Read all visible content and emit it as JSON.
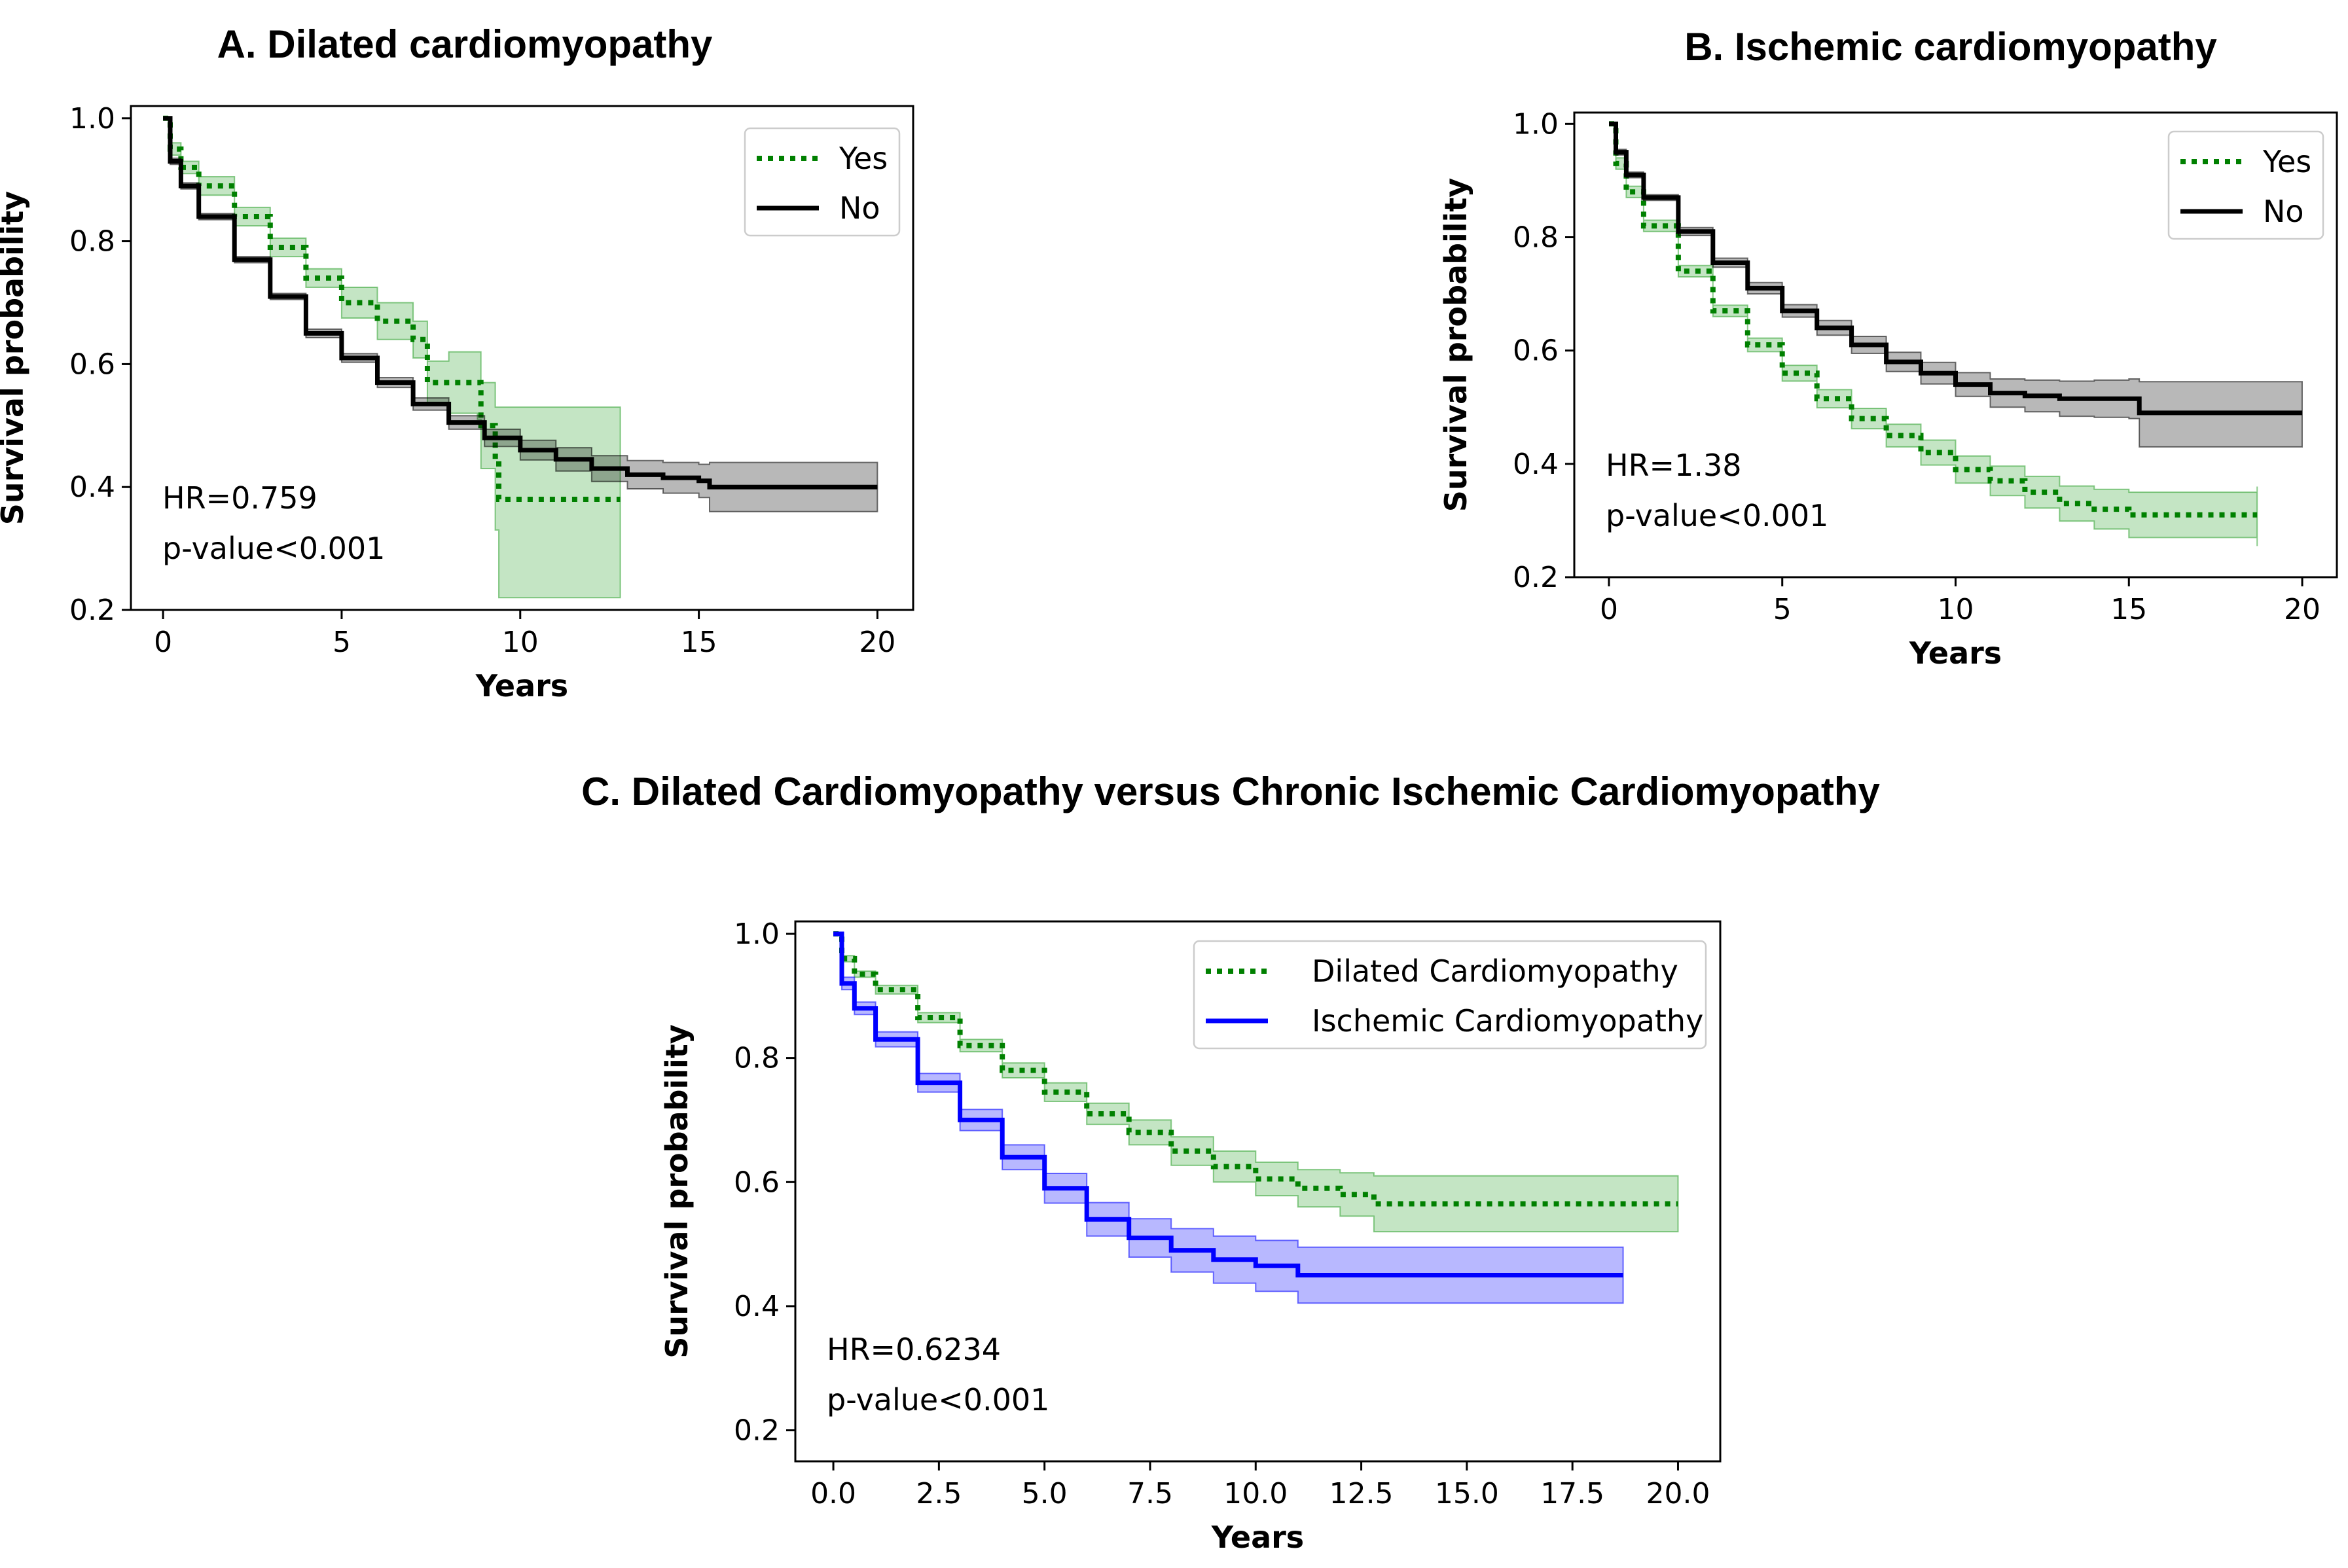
{
  "figure": {
    "title_c": "C. Dilated Cardiomyopathy versus Chronic Ischemic Cardiomyopathy"
  },
  "colors": {
    "green": "#008000",
    "green_band": "#2ca02c",
    "black": "#000000",
    "blue": "#0000ff"
  },
  "chart_data": [
    {
      "id": "A",
      "type": "line",
      "title": "A. Dilated cardiomyopathy",
      "xlabel": "Years",
      "ylabel": "Survival probability",
      "xlim": [
        -0.9,
        21
      ],
      "ylim": [
        0.2,
        1.02
      ],
      "xticks": [
        0,
        5,
        10,
        15,
        20
      ],
      "xtick_labels": [
        "0",
        "5",
        "10",
        "15",
        "20"
      ],
      "yticks": [
        0.2,
        0.4,
        0.6,
        0.8,
        1.0
      ],
      "ytick_labels": [
        "0.2",
        "0.4",
        "0.6",
        "0.8",
        "1.0"
      ],
      "legend": {
        "position": "top-right",
        "labels": [
          "Yes",
          "No"
        ]
      },
      "annotations": {
        "hr": "HR=0.759",
        "p": "p-value<0.001"
      },
      "series": [
        {
          "name": "Yes",
          "color": "#008000",
          "style": "dotted",
          "step": true,
          "x": [
            0,
            0.2,
            0.5,
            1,
            2,
            3,
            4,
            5,
            6,
            7,
            7.3,
            7.4,
            8,
            8.8,
            8.9,
            9.3,
            9.4,
            12.8
          ],
          "y": [
            1.0,
            0.95,
            0.92,
            0.89,
            0.84,
            0.79,
            0.74,
            0.7,
            0.67,
            0.64,
            0.64,
            0.57,
            0.57,
            0.57,
            0.5,
            0.45,
            0.38,
            0.38
          ],
          "lower": [
            1.0,
            0.94,
            0.91,
            0.875,
            0.825,
            0.775,
            0.725,
            0.675,
            0.64,
            0.61,
            0.61,
            0.535,
            0.52,
            0.51,
            0.43,
            0.33,
            0.22,
            0.22
          ],
          "upper": [
            1.0,
            0.96,
            0.93,
            0.905,
            0.855,
            0.805,
            0.755,
            0.725,
            0.7,
            0.67,
            0.67,
            0.605,
            0.62,
            0.62,
            0.57,
            0.53,
            0.53,
            0.53
          ]
        },
        {
          "name": "No",
          "color": "#000000",
          "style": "solid",
          "step": true,
          "x": [
            0,
            0.2,
            0.5,
            1,
            2,
            3,
            4,
            5,
            6,
            7,
            8,
            9,
            10,
            11,
            12,
            13,
            14,
            15,
            15.3,
            20
          ],
          "y": [
            1.0,
            0.93,
            0.89,
            0.84,
            0.77,
            0.71,
            0.65,
            0.61,
            0.57,
            0.535,
            0.505,
            0.48,
            0.46,
            0.445,
            0.43,
            0.42,
            0.415,
            0.41,
            0.4,
            0.4
          ],
          "lower": [
            1.0,
            0.925,
            0.885,
            0.835,
            0.765,
            0.705,
            0.643,
            0.603,
            0.562,
            0.525,
            0.494,
            0.466,
            0.444,
            0.426,
            0.409,
            0.397,
            0.39,
            0.383,
            0.36,
            0.36
          ],
          "upper": [
            1.0,
            0.935,
            0.895,
            0.845,
            0.775,
            0.715,
            0.657,
            0.617,
            0.578,
            0.545,
            0.516,
            0.494,
            0.476,
            0.464,
            0.451,
            0.443,
            0.44,
            0.437,
            0.44,
            0.44
          ]
        }
      ]
    },
    {
      "id": "B",
      "type": "line",
      "title": "B. Ischemic cardiomyopathy",
      "xlabel": "Years",
      "ylabel": "Survival probability",
      "xlim": [
        -1,
        21
      ],
      "ylim": [
        0.2,
        1.02
      ],
      "xticks": [
        0,
        5,
        10,
        15,
        20
      ],
      "xtick_labels": [
        "0",
        "5",
        "10",
        "15",
        "20"
      ],
      "yticks": [
        0.2,
        0.4,
        0.6,
        0.8,
        1.0
      ],
      "ytick_labels": [
        "0.2",
        "0.4",
        "0.6",
        "0.8",
        "1.0"
      ],
      "legend": {
        "position": "top-right",
        "labels": [
          "Yes",
          "No"
        ]
      },
      "annotations": {
        "hr": "HR=1.38",
        "p": "p-value<0.001"
      },
      "series": [
        {
          "name": "Yes",
          "color": "#008000",
          "style": "dotted",
          "step": true,
          "x": [
            0,
            0.2,
            0.5,
            1,
            2,
            3,
            4,
            5,
            6,
            7,
            8,
            9,
            10,
            11,
            12,
            13,
            14,
            15,
            18.7
          ],
          "y": [
            1.0,
            0.93,
            0.88,
            0.82,
            0.74,
            0.67,
            0.61,
            0.56,
            0.515,
            0.48,
            0.45,
            0.42,
            0.39,
            0.37,
            0.35,
            0.33,
            0.32,
            0.31,
            0.31
          ],
          "lower": [
            1.0,
            0.92,
            0.87,
            0.81,
            0.73,
            0.66,
            0.598,
            0.546,
            0.499,
            0.462,
            0.43,
            0.398,
            0.366,
            0.344,
            0.322,
            0.299,
            0.285,
            0.27,
            0.255
          ],
          "upper": [
            1.0,
            0.94,
            0.89,
            0.83,
            0.75,
            0.68,
            0.622,
            0.574,
            0.531,
            0.498,
            0.47,
            0.442,
            0.414,
            0.396,
            0.378,
            0.361,
            0.355,
            0.35,
            0.36
          ]
        },
        {
          "name": "No",
          "color": "#000000",
          "style": "solid",
          "step": true,
          "x": [
            0,
            0.2,
            0.5,
            1,
            2,
            3,
            4,
            5,
            6,
            7,
            8,
            9,
            10,
            11,
            12,
            13,
            14,
            15,
            15.3,
            20
          ],
          "y": [
            1.0,
            0.95,
            0.91,
            0.87,
            0.81,
            0.755,
            0.71,
            0.67,
            0.64,
            0.61,
            0.58,
            0.56,
            0.54,
            0.525,
            0.52,
            0.515,
            0.515,
            0.515,
            0.49,
            0.49
          ],
          "lower": [
            1.0,
            0.945,
            0.905,
            0.865,
            0.803,
            0.747,
            0.7,
            0.659,
            0.627,
            0.595,
            0.563,
            0.541,
            0.519,
            0.5,
            0.492,
            0.484,
            0.482,
            0.48,
            0.43,
            0.43
          ],
          "upper": [
            1.0,
            0.955,
            0.915,
            0.875,
            0.817,
            0.763,
            0.72,
            0.681,
            0.653,
            0.625,
            0.597,
            0.579,
            0.561,
            0.55,
            0.548,
            0.546,
            0.548,
            0.55,
            0.545,
            0.545
          ]
        }
      ]
    },
    {
      "id": "C",
      "type": "line",
      "title": "C. Dilated Cardiomyopathy versus Chronic Ischemic Cardiomyopathy",
      "xlabel": "Years",
      "ylabel": "Survival probability",
      "xlim": [
        -0.9,
        21
      ],
      "ylim": [
        0.15,
        1.02
      ],
      "xticks": [
        0,
        2.5,
        5,
        7.5,
        10,
        12.5,
        15,
        17.5,
        20
      ],
      "xtick_labels": [
        "0.0",
        "2.5",
        "5.0",
        "7.5",
        "10.0",
        "12.5",
        "15.0",
        "17.5",
        "20.0"
      ],
      "yticks": [
        0.2,
        0.4,
        0.6,
        0.8,
        1.0
      ],
      "ytick_labels": [
        "0.2",
        "0.4",
        "0.6",
        "0.8",
        "1.0"
      ],
      "legend": {
        "position": "top-right",
        "labels": [
          "Dilated Cardiomyopathy",
          "Ischemic Cardiomyopathy"
        ]
      },
      "annotations": {
        "hr": "HR=0.6234",
        "p": "p-value<0.001"
      },
      "series": [
        {
          "name": "Dilated Cardiomyopathy",
          "color": "#008000",
          "style": "dotted",
          "step": true,
          "x": [
            0,
            0.2,
            0.5,
            1,
            2,
            3,
            4,
            5,
            6,
            7,
            8,
            9,
            10,
            11,
            12,
            12.8,
            13,
            20
          ],
          "y": [
            1.0,
            0.96,
            0.935,
            0.91,
            0.865,
            0.82,
            0.78,
            0.745,
            0.71,
            0.68,
            0.65,
            0.625,
            0.605,
            0.59,
            0.58,
            0.565,
            0.565,
            0.565
          ],
          "lower": [
            1.0,
            0.955,
            0.93,
            0.903,
            0.857,
            0.81,
            0.768,
            0.73,
            0.693,
            0.66,
            0.627,
            0.6,
            0.578,
            0.56,
            0.545,
            0.52,
            0.52,
            0.52
          ],
          "upper": [
            1.0,
            0.965,
            0.94,
            0.917,
            0.873,
            0.83,
            0.792,
            0.76,
            0.727,
            0.7,
            0.673,
            0.65,
            0.632,
            0.62,
            0.615,
            0.61,
            0.61,
            0.61
          ]
        },
        {
          "name": "Ischemic Cardiomyopathy",
          "color": "#0000ff",
          "style": "solid",
          "step": true,
          "x": [
            0,
            0.2,
            0.5,
            1,
            2,
            3,
            4,
            5,
            6,
            7,
            8,
            9,
            10,
            11,
            18.7
          ],
          "y": [
            1.0,
            0.92,
            0.88,
            0.83,
            0.76,
            0.7,
            0.64,
            0.59,
            0.54,
            0.51,
            0.49,
            0.475,
            0.465,
            0.45,
            0.45
          ],
          "lower": [
            1.0,
            0.91,
            0.87,
            0.818,
            0.745,
            0.683,
            0.62,
            0.566,
            0.513,
            0.479,
            0.455,
            0.437,
            0.424,
            0.405,
            0.405
          ],
          "upper": [
            1.0,
            0.93,
            0.89,
            0.842,
            0.775,
            0.717,
            0.66,
            0.614,
            0.567,
            0.541,
            0.525,
            0.513,
            0.506,
            0.495,
            0.495
          ]
        }
      ]
    }
  ]
}
